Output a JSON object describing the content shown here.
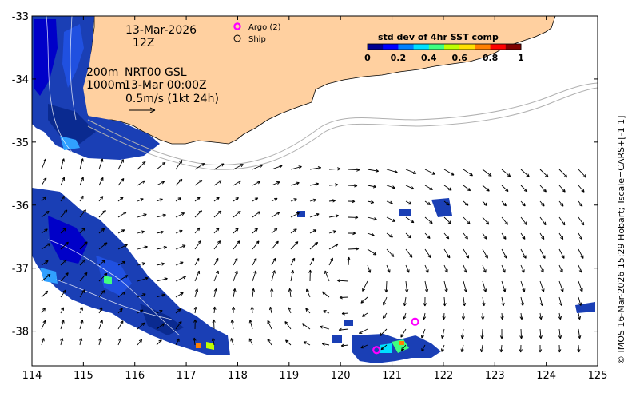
{
  "date_line": "13-Mar-2026",
  "time_line": "12Z",
  "depth_200": "200m",
  "depth_1000": "1000m",
  "product_line": "NRT00 GSL",
  "product_time": "13-Mar 00:00Z",
  "vector_scale": "0.5m/s (1kt 24h)",
  "legend": {
    "argo": "Argo (2)",
    "ship": "Ship"
  },
  "colorbar": {
    "title": "std dev of 4hr SST comp",
    "ticks": [
      "0",
      "0.2",
      "0.4",
      "0.6",
      "0.8",
      "1"
    ],
    "colors": [
      "#000090",
      "#0000ff",
      "#0080ff",
      "#00e0ff",
      "#40ff80",
      "#c0ff00",
      "#ffe000",
      "#ff8000",
      "#ff0000",
      "#800000"
    ]
  },
  "side_text": "© IMOS 16-Mar-2026 15:29 Hobart; Tscale=CARS+[-1 1]",
  "axes": {
    "x_ticks": [
      "114",
      "115",
      "116",
      "117",
      "118",
      "119",
      "120",
      "121",
      "122",
      "123",
      "124",
      "125"
    ],
    "y_ticks": [
      "-33",
      "-34",
      "-35",
      "-36",
      "-37",
      "-38"
    ],
    "lon_range": [
      114,
      125
    ],
    "lat_range": [
      -38.55,
      -33
    ]
  },
  "colors": {
    "land": "#ffd0a0",
    "isobath": "#b0b0b0"
  },
  "argo_floats": [
    {
      "lon": 121.45,
      "lat": -37.85
    },
    {
      "lon": 120.7,
      "lat": -38.3
    }
  ]
}
